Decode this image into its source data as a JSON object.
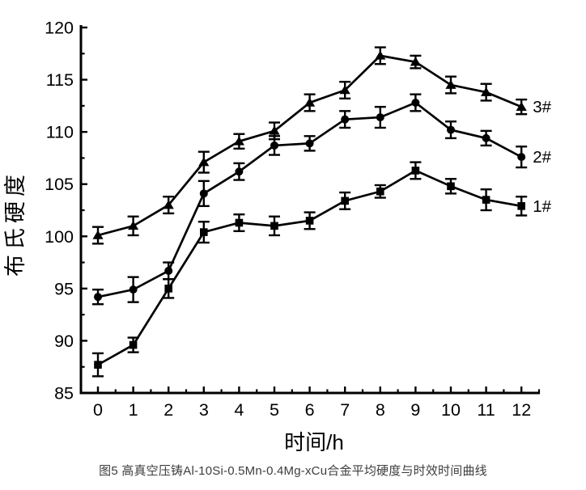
{
  "figure": {
    "caption": "图5 高真空压铸Al-10Si-0.5Mn-0.4Mg-xCu合金平均硬度与时效时间曲线"
  },
  "chart_data": {
    "type": "line",
    "title": "",
    "xlabel": "时间/h",
    "ylabel": "布氏硬度",
    "x": [
      0,
      1,
      2,
      3,
      4,
      5,
      6,
      7,
      8,
      9,
      10,
      11,
      12
    ],
    "x_tick_labels": [
      "0",
      "1",
      "2",
      "3",
      "4",
      "5",
      "6",
      "7",
      "8",
      "9",
      "10",
      "11",
      "12"
    ],
    "y_ticks": [
      85,
      90,
      95,
      100,
      105,
      110,
      115,
      120
    ],
    "xlim": [
      -0.48,
      12.52
    ],
    "ylim": [
      85,
      120.4
    ],
    "x_minor_interval": 0.5,
    "y_minor_interval": 2.5,
    "grid": false,
    "error_bars": true,
    "legend_position": "labels-at-line-ends-right",
    "series": [
      {
        "name": "1#",
        "marker": "square",
        "values": [
          87.7,
          89.6,
          95.0,
          100.4,
          101.3,
          101.0,
          101.5,
          103.4,
          104.3,
          106.3,
          104.8,
          103.5,
          102.9
        ],
        "errors": [
          1.1,
          0.7,
          0.9,
          1.0,
          0.8,
          0.9,
          0.8,
          0.8,
          0.6,
          0.8,
          0.7,
          1.0,
          0.9
        ]
      },
      {
        "name": "2#",
        "marker": "circle",
        "values": [
          94.2,
          94.9,
          96.7,
          104.1,
          106.2,
          108.7,
          108.9,
          111.2,
          111.4,
          112.8,
          110.2,
          109.4,
          107.6
        ],
        "errors": [
          0.7,
          1.2,
          0.8,
          1.2,
          0.8,
          0.9,
          0.7,
          0.8,
          1.0,
          0.8,
          0.8,
          0.7,
          1.0
        ]
      },
      {
        "name": "3#",
        "marker": "triangle",
        "values": [
          100.1,
          101.0,
          103.0,
          107.1,
          109.1,
          110.1,
          112.8,
          114.0,
          117.3,
          116.7,
          114.5,
          113.8,
          112.4
        ],
        "errors": [
          0.8,
          0.9,
          0.8,
          1.0,
          0.7,
          0.8,
          0.8,
          0.8,
          0.8,
          0.6,
          0.8,
          0.8,
          0.7
        ]
      }
    ],
    "colors": {
      "series": "#000000",
      "axis": "#000000",
      "caption": "#3d3d3d",
      "background": "#ffffff"
    }
  }
}
